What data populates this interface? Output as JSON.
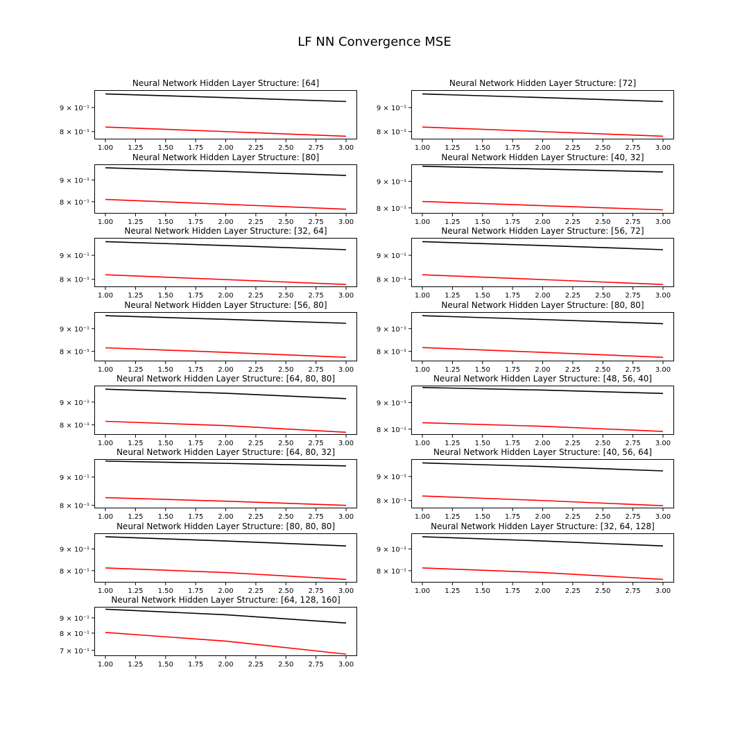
{
  "figure": {
    "title": "LF NN Convergence MSE"
  },
  "colors": {
    "series_a": "#000000",
    "series_b": "#ff0000"
  },
  "chart_data": [
    {
      "type": "line",
      "title": "Neural Network Hidden Layer Structure: [64]",
      "x": [
        1,
        2,
        3
      ],
      "ylim": [
        0.77,
        0.98
      ],
      "yscale": "log",
      "yticks": [
        0.8,
        0.9
      ],
      "ytick_labels": [
        "8 × 10⁻¹",
        "9 × 10⁻¹"
      ],
      "xticks": [
        "1.00",
        "1.25",
        "1.50",
        "1.75",
        "2.00",
        "2.25",
        "2.50",
        "2.75",
        "3.00"
      ],
      "grid": false,
      "series": [
        {
          "color": "#000000",
          "values": [
            0.962,
            0.945,
            0.927
          ]
        },
        {
          "color": "#ff0000",
          "values": [
            0.818,
            0.8,
            0.782
          ]
        }
      ]
    },
    {
      "type": "line",
      "title": "Neural Network Hidden Layer Structure: [72]",
      "x": [
        1,
        2,
        3
      ],
      "ylim": [
        0.77,
        0.98
      ],
      "yscale": "log",
      "yticks": [
        0.8,
        0.9
      ],
      "ytick_labels": [
        "8 × 10⁻¹",
        "9 × 10⁻¹"
      ],
      "xticks": [
        "1.00",
        "1.25",
        "1.50",
        "1.75",
        "2.00",
        "2.25",
        "2.50",
        "2.75",
        "3.00"
      ],
      "grid": false,
      "series": [
        {
          "color": "#000000",
          "values": [
            0.962,
            0.945,
            0.927
          ]
        },
        {
          "color": "#ff0000",
          "values": [
            0.818,
            0.8,
            0.782
          ]
        }
      ]
    },
    {
      "type": "line",
      "title": "Neural Network Hidden Layer Structure: [80]",
      "x": [
        1,
        2,
        3
      ],
      "ylim": [
        0.75,
        0.98
      ],
      "yscale": "log",
      "yticks": [
        0.8,
        0.9
      ],
      "ytick_labels": [
        "8 × 10⁻¹",
        "9 × 10⁻¹"
      ],
      "xticks": [
        "1.00",
        "1.25",
        "1.50",
        "1.75",
        "2.00",
        "2.25",
        "2.50",
        "2.75",
        "3.00"
      ],
      "grid": false,
      "series": [
        {
          "color": "#000000",
          "values": [
            0.962,
            0.943,
            0.923
          ]
        },
        {
          "color": "#ff0000",
          "values": [
            0.81,
            0.789,
            0.768
          ]
        }
      ]
    },
    {
      "type": "line",
      "title": "Neural Network Hidden Layer Structure: [40, 32]",
      "x": [
        1,
        2,
        3
      ],
      "ylim": [
        0.78,
        0.97
      ],
      "yscale": "log",
      "yticks": [
        0.8,
        0.9
      ],
      "ytick_labels": [
        "8 × 10⁻¹",
        "9 × 10⁻¹"
      ],
      "xticks": [
        "1.00",
        "1.25",
        "1.50",
        "1.75",
        "2.00",
        "2.25",
        "2.50",
        "2.75",
        "3.00"
      ],
      "grid": false,
      "series": [
        {
          "color": "#000000",
          "values": [
            0.962,
            0.95,
            0.938
          ]
        },
        {
          "color": "#ff0000",
          "values": [
            0.823,
            0.808,
            0.793
          ]
        }
      ]
    },
    {
      "type": "line",
      "title": "Neural Network Hidden Layer Structure: [32, 64]",
      "x": [
        1,
        2,
        3
      ],
      "ylim": [
        0.77,
        0.98
      ],
      "yscale": "log",
      "yticks": [
        0.8,
        0.9
      ],
      "ytick_labels": [
        "8 × 10⁻¹",
        "9 × 10⁻¹"
      ],
      "xticks": [
        "1.00",
        "1.25",
        "1.50",
        "1.75",
        "2.00",
        "2.25",
        "2.50",
        "2.75",
        "3.00"
      ],
      "grid": false,
      "series": [
        {
          "color": "#000000",
          "values": [
            0.962,
            0.944,
            0.925
          ]
        },
        {
          "color": "#ff0000",
          "values": [
            0.818,
            0.799,
            0.78
          ]
        }
      ]
    },
    {
      "type": "line",
      "title": "Neural Network Hidden Layer Structure: [56, 72]",
      "x": [
        1,
        2,
        3
      ],
      "ylim": [
        0.77,
        0.98
      ],
      "yscale": "log",
      "yticks": [
        0.8,
        0.9
      ],
      "ytick_labels": [
        "8 × 10⁻¹",
        "9 × 10⁻¹"
      ],
      "xticks": [
        "1.00",
        "1.25",
        "1.50",
        "1.75",
        "2.00",
        "2.25",
        "2.50",
        "2.75",
        "3.00"
      ],
      "grid": false,
      "series": [
        {
          "color": "#000000",
          "values": [
            0.962,
            0.944,
            0.925
          ]
        },
        {
          "color": "#ff0000",
          "values": [
            0.818,
            0.799,
            0.78
          ]
        }
      ]
    },
    {
      "type": "line",
      "title": "Neural Network Hidden Layer Structure: [56, 80]",
      "x": [
        1,
        2,
        3
      ],
      "ylim": [
        0.76,
        0.98
      ],
      "yscale": "log",
      "yticks": [
        0.8,
        0.9
      ],
      "ytick_labels": [
        "8 × 10⁻¹",
        "9 × 10⁻¹"
      ],
      "xticks": [
        "1.00",
        "1.25",
        "1.50",
        "1.75",
        "2.00",
        "2.25",
        "2.50",
        "2.75",
        "3.00"
      ],
      "grid": false,
      "series": [
        {
          "color": "#000000",
          "values": [
            0.962,
            0.944,
            0.925
          ]
        },
        {
          "color": "#ff0000",
          "values": [
            0.815,
            0.796,
            0.776
          ]
        }
      ]
    },
    {
      "type": "line",
      "title": "Neural Network Hidden Layer Structure: [80, 80]",
      "x": [
        1,
        2,
        3
      ],
      "ylim": [
        0.76,
        0.98
      ],
      "yscale": "log",
      "yticks": [
        0.8,
        0.9
      ],
      "ytick_labels": [
        "8 × 10⁻¹",
        "9 × 10⁻¹"
      ],
      "xticks": [
        "1.00",
        "1.25",
        "1.50",
        "1.75",
        "2.00",
        "2.25",
        "2.50",
        "2.75",
        "3.00"
      ],
      "grid": false,
      "series": [
        {
          "color": "#000000",
          "values": [
            0.962,
            0.943,
            0.923
          ]
        },
        {
          "color": "#ff0000",
          "values": [
            0.816,
            0.796,
            0.776
          ]
        }
      ]
    },
    {
      "type": "line",
      "title": "Neural Network Hidden Layer Structure: [64, 80, 80]",
      "x": [
        1,
        2,
        3
      ],
      "ylim": [
        0.76,
        0.98
      ],
      "yscale": "log",
      "yticks": [
        0.8,
        0.9
      ],
      "ytick_labels": [
        "8 × 10⁻¹",
        "9 × 10⁻¹"
      ],
      "xticks": [
        "1.00",
        "1.25",
        "1.50",
        "1.75",
        "2.00",
        "2.25",
        "2.50",
        "2.75",
        "3.00"
      ],
      "grid": false,
      "series": [
        {
          "color": "#000000",
          "values": [
            0.962,
            0.942,
            0.916
          ]
        },
        {
          "color": "#ff0000",
          "values": [
            0.815,
            0.797,
            0.77
          ]
        }
      ]
    },
    {
      "type": "line",
      "title": "Neural Network Hidden Layer Structure: [48, 56, 40]",
      "x": [
        1,
        2,
        3
      ],
      "ylim": [
        0.78,
        0.97
      ],
      "yscale": "log",
      "yticks": [
        0.8,
        0.9
      ],
      "ytick_labels": [
        "8 × 10⁻¹",
        "9 × 10⁻¹"
      ],
      "xticks": [
        "1.00",
        "1.25",
        "1.50",
        "1.75",
        "2.00",
        "2.25",
        "2.50",
        "2.75",
        "3.00"
      ],
      "grid": false,
      "series": [
        {
          "color": "#000000",
          "values": [
            0.962,
            0.951,
            0.937
          ]
        },
        {
          "color": "#ff0000",
          "values": [
            0.823,
            0.81,
            0.792
          ]
        }
      ]
    },
    {
      "type": "line",
      "title": "Neural Network Hidden Layer Structure: [64, 80, 32]",
      "x": [
        1,
        2,
        3
      ],
      "ylim": [
        0.79,
        0.97
      ],
      "yscale": "log",
      "yticks": [
        0.8,
        0.9
      ],
      "ytick_labels": [
        "8 × 10⁻¹",
        "9 × 10⁻¹"
      ],
      "xticks": [
        "1.00",
        "1.25",
        "1.50",
        "1.75",
        "2.00",
        "2.25",
        "2.50",
        "2.75",
        "3.00"
      ],
      "grid": false,
      "series": [
        {
          "color": "#000000",
          "values": [
            0.962,
            0.953,
            0.943
          ]
        },
        {
          "color": "#ff0000",
          "values": [
            0.826,
            0.814,
            0.8
          ]
        }
      ]
    },
    {
      "type": "line",
      "title": "Neural Network Hidden Layer Structure: [40, 56, 64]",
      "x": [
        1,
        2,
        3
      ],
      "ylim": [
        0.77,
        0.98
      ],
      "yscale": "log",
      "yticks": [
        0.8,
        0.9
      ],
      "ytick_labels": [
        "8 × 10⁻¹",
        "9 × 10⁻¹"
      ],
      "xticks": [
        "1.00",
        "1.25",
        "1.50",
        "1.75",
        "2.00",
        "2.25",
        "2.50",
        "2.75",
        "3.00"
      ],
      "grid": false,
      "series": [
        {
          "color": "#000000",
          "values": [
            0.962,
            0.945,
            0.925
          ]
        },
        {
          "color": "#ff0000",
          "values": [
            0.818,
            0.8,
            0.78
          ]
        }
      ]
    },
    {
      "type": "line",
      "title": "Neural Network Hidden Layer Structure: [80, 80, 80]",
      "x": [
        1,
        2,
        3
      ],
      "ylim": [
        0.75,
        0.98
      ],
      "yscale": "log",
      "yticks": [
        0.8,
        0.9
      ],
      "ytick_labels": [
        "8 × 10⁻¹",
        "9 × 10⁻¹"
      ],
      "xticks": [
        "1.00",
        "1.25",
        "1.50",
        "1.75",
        "2.00",
        "2.25",
        "2.50",
        "2.75",
        "3.00"
      ],
      "grid": false,
      "series": [
        {
          "color": "#000000",
          "values": [
            0.962,
            0.94,
            0.915
          ]
        },
        {
          "color": "#ff0000",
          "values": [
            0.812,
            0.792,
            0.763
          ]
        }
      ]
    },
    {
      "type": "line",
      "title": "Neural Network Hidden Layer Structure: [32, 64, 128]",
      "x": [
        1,
        2,
        3
      ],
      "ylim": [
        0.75,
        0.98
      ],
      "yscale": "log",
      "yticks": [
        0.8,
        0.9
      ],
      "ytick_labels": [
        "8 × 10⁻¹",
        "9 × 10⁻¹"
      ],
      "xticks": [
        "1.00",
        "1.25",
        "1.50",
        "1.75",
        "2.00",
        "2.25",
        "2.50",
        "2.75",
        "3.00"
      ],
      "grid": false,
      "series": [
        {
          "color": "#000000",
          "values": [
            0.962,
            0.94,
            0.915
          ]
        },
        {
          "color": "#ff0000",
          "values": [
            0.812,
            0.792,
            0.763
          ]
        }
      ]
    },
    {
      "type": "line",
      "title": "Neural Network Hidden Layer Structure: [64, 128, 160]",
      "x": [
        1,
        2,
        3
      ],
      "ylim": [
        0.67,
        0.98
      ],
      "yscale": "log",
      "yticks": [
        0.7,
        0.8,
        0.9
      ],
      "ytick_labels": [
        "7 × 10⁻¹",
        "8 × 10⁻¹",
        "9 × 10⁻¹"
      ],
      "xticks": [
        "1.00",
        "1.25",
        "1.50",
        "1.75",
        "2.00",
        "2.25",
        "2.50",
        "2.75",
        "3.00"
      ],
      "grid": false,
      "series": [
        {
          "color": "#000000",
          "values": [
            0.962,
            0.922,
            0.865
          ]
        },
        {
          "color": "#ff0000",
          "values": [
            0.804,
            0.752,
            0.68
          ]
        }
      ]
    }
  ]
}
